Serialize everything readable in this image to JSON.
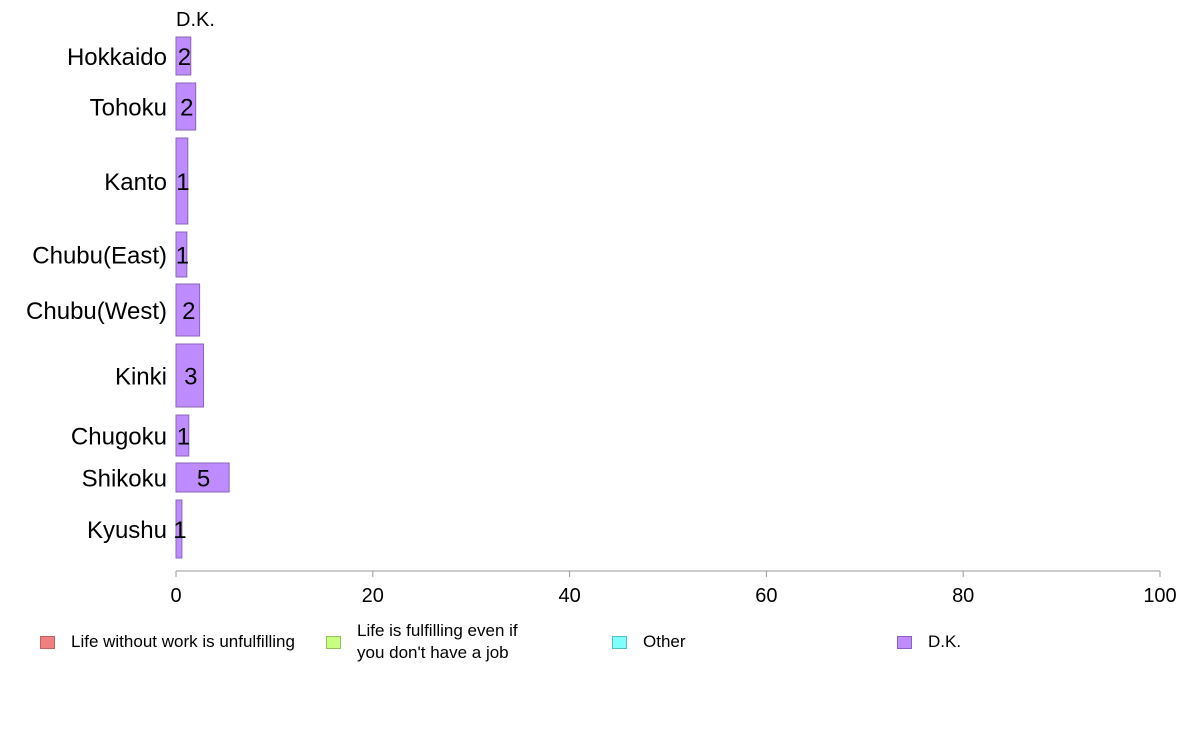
{
  "chart_data": {
    "type": "bar",
    "orientation": "horizontal",
    "panel_title": "D.K.",
    "categories": [
      "Hokkaido",
      "Tohoku",
      "Kanto",
      "Chubu(East)",
      "Chubu(West)",
      "Kinki",
      "Chugoku",
      "Shikoku",
      "Kyushu"
    ],
    "series": [
      {
        "name": "D.K.",
        "color": "#bf8cff",
        "values": [
          1.5,
          2.0,
          1.2,
          1.1,
          2.4,
          2.8,
          1.3,
          5.4,
          0.6
        ],
        "labels": [
          "2",
          "2",
          "1",
          "1",
          "2",
          "3",
          "1",
          "5",
          "1"
        ]
      }
    ],
    "xlim": [
      0,
      100
    ],
    "xticks": [
      "0",
      "20",
      "40",
      "60",
      "80",
      "100"
    ],
    "grid": false,
    "legend": {
      "position": "bottom",
      "entries": [
        {
          "label": "Life without work is unfulfilling",
          "color": "#f08080"
        },
        {
          "label_lines": [
            "Life is fulfilling even if",
            "you don't have a job"
          ],
          "color": "#c8ff80"
        },
        {
          "label": "Other",
          "color": "#80ffff"
        },
        {
          "label": "D.K.",
          "color": "#bf8cff"
        }
      ]
    }
  }
}
